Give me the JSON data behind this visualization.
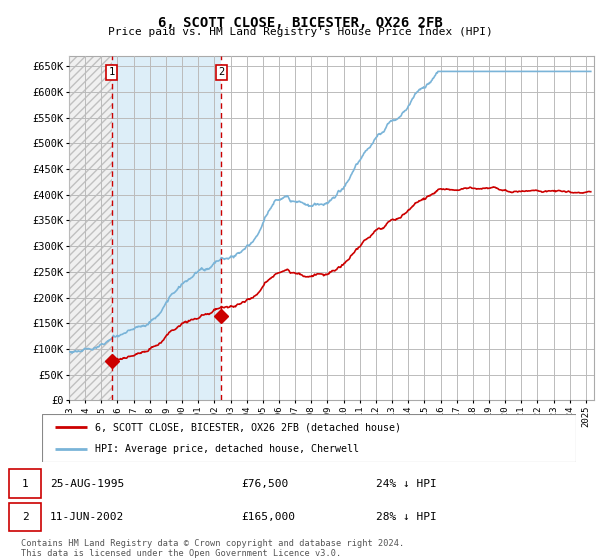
{
  "title": "6, SCOTT CLOSE, BICESTER, OX26 2FB",
  "subtitle": "Price paid vs. HM Land Registry's House Price Index (HPI)",
  "ylabel_ticks": [
    "£0",
    "£50K",
    "£100K",
    "£150K",
    "£200K",
    "£250K",
    "£300K",
    "£350K",
    "£400K",
    "£450K",
    "£500K",
    "£550K",
    "£600K",
    "£650K"
  ],
  "ytick_values": [
    0,
    50000,
    100000,
    150000,
    200000,
    250000,
    300000,
    350000,
    400000,
    450000,
    500000,
    550000,
    600000,
    650000
  ],
  "ylim": [
    0,
    670000
  ],
  "xlim_start": 1993.0,
  "xlim_end": 2025.5,
  "sale1_x": 1995.646,
  "sale1_y": 76500,
  "sale2_x": 2002.44,
  "sale2_y": 165000,
  "sale1_label": "1",
  "sale2_label": "2",
  "hpi_color": "#7ab4d8",
  "sale_color": "#cc0000",
  "marker_color": "#cc0000",
  "legend1_text": "6, SCOTT CLOSE, BICESTER, OX26 2FB (detached house)",
  "legend2_text": "HPI: Average price, detached house, Cherwell",
  "footnote": "Contains HM Land Registry data © Crown copyright and database right 2024.\nThis data is licensed under the Open Government Licence v3.0.",
  "grid_color": "#bbbbbb",
  "hatch_fill_color": "#dde8f0",
  "hatch_left_color": "#e0e0e0",
  "xtick_years": [
    1993,
    1994,
    1995,
    1996,
    1997,
    1998,
    1999,
    2000,
    2001,
    2002,
    2003,
    2004,
    2005,
    2006,
    2007,
    2008,
    2009,
    2010,
    2011,
    2012,
    2013,
    2014,
    2015,
    2016,
    2017,
    2018,
    2019,
    2020,
    2021,
    2022,
    2023,
    2024,
    2025
  ]
}
